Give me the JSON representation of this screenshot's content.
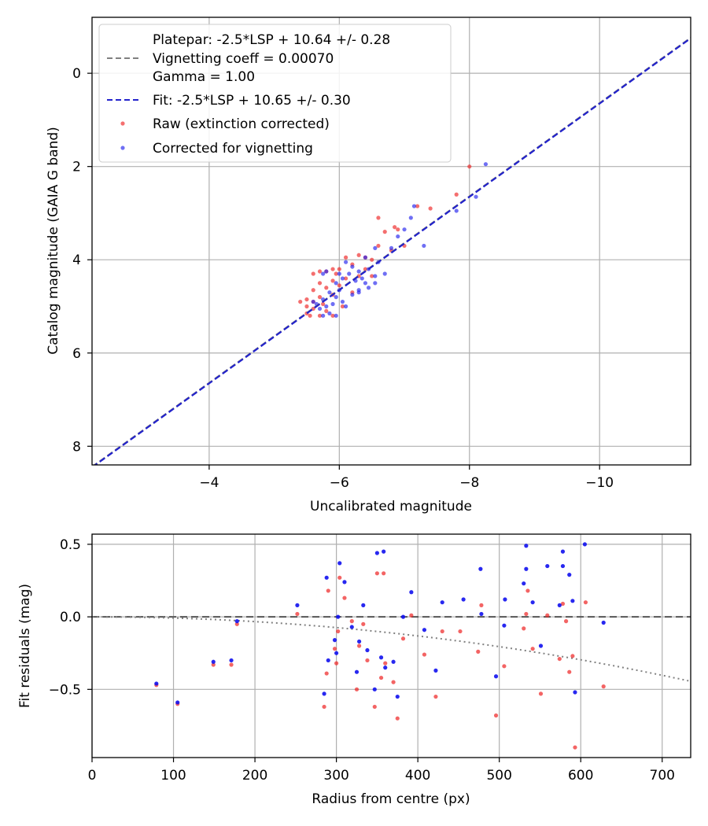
{
  "chart_data": [
    {
      "type": "scatter",
      "xlabel": "Uncalibrated magnitude",
      "ylabel": "Catalog magnitude (GAIA G band)",
      "xlim": [
        -2.2,
        -11.4
      ],
      "ylim": [
        8.4,
        -1.2
      ],
      "xticks": [
        -4,
        -6,
        -8,
        -10
      ],
      "xtick_labels": [
        "−4",
        "−6",
        "−8",
        "−10"
      ],
      "yticks": [
        0,
        2,
        4,
        6,
        8
      ],
      "ytick_labels": [
        "0",
        "2",
        "4",
        "6",
        "8"
      ],
      "grid": true,
      "legend_position": "top-left",
      "legend": [
        {
          "label": "Platepar: -2.5*LSP + 10.64 +/- 0.28",
          "style": "none"
        },
        {
          "label": "Vignetting coeff = 0.00070",
          "style": "gray-dashed"
        },
        {
          "label": "Gamma = 1.00",
          "style": "none"
        },
        {
          "label": "Fit: -2.5*LSP + 10.65 +/- 0.30",
          "style": "blue-dashed"
        },
        {
          "label": "Raw (extinction corrected)",
          "style": "red-dot"
        },
        {
          "label": "Corrected for vignetting",
          "style": "blue-dot"
        }
      ],
      "lines": [
        {
          "name": "Platepar",
          "slope": 1.0,
          "intercept": 10.64,
          "color": "#808080"
        },
        {
          "name": "Fit",
          "slope": 1.0,
          "intercept": 10.65,
          "color": "#2222cc"
        }
      ],
      "series": [
        {
          "name": "Raw (extinction corrected)",
          "color": "#ee2222",
          "points": [
            [
              -8.0,
              2.0
            ],
            [
              -7.8,
              2.6
            ],
            [
              -7.4,
              2.9
            ],
            [
              -7.2,
              2.85
            ],
            [
              -6.85,
              3.3
            ],
            [
              -6.9,
              3.35
            ],
            [
              -6.6,
              3.1
            ],
            [
              -6.7,
              3.4
            ],
            [
              -7.0,
              3.7
            ],
            [
              -6.8,
              3.8
            ],
            [
              -6.6,
              3.7
            ],
            [
              -6.4,
              3.95
            ],
            [
              -6.5,
              4.0
            ],
            [
              -6.3,
              3.9
            ],
            [
              -6.1,
              3.95
            ],
            [
              -6.2,
              4.1
            ],
            [
              -6.4,
              4.2
            ],
            [
              -6.0,
              4.2
            ],
            [
              -5.9,
              4.2
            ],
            [
              -5.8,
              4.25
            ],
            [
              -5.7,
              4.25
            ],
            [
              -5.6,
              4.3
            ],
            [
              -5.95,
              4.3
            ],
            [
              -6.3,
              4.35
            ],
            [
              -6.5,
              4.35
            ],
            [
              -6.1,
              4.4
            ],
            [
              -5.9,
              4.45
            ],
            [
              -5.7,
              4.5
            ],
            [
              -6.0,
              4.55
            ],
            [
              -5.8,
              4.6
            ],
            [
              -5.6,
              4.65
            ],
            [
              -6.2,
              4.7
            ],
            [
              -5.9,
              4.75
            ],
            [
              -5.7,
              4.8
            ],
            [
              -5.5,
              4.85
            ],
            [
              -5.6,
              4.9
            ],
            [
              -5.4,
              4.9
            ],
            [
              -5.75,
              4.95
            ],
            [
              -5.5,
              5.0
            ],
            [
              -5.6,
              5.05
            ],
            [
              -5.8,
              5.1
            ],
            [
              -5.5,
              5.15
            ],
            [
              -5.7,
              5.2
            ],
            [
              -5.9,
              5.2
            ],
            [
              -6.05,
              5.0
            ],
            [
              -5.55,
              5.2
            ]
          ]
        },
        {
          "name": "Corrected for vignetting",
          "color": "#2222ee",
          "points": [
            [
              -8.25,
              1.95
            ],
            [
              -8.1,
              2.65
            ],
            [
              -7.8,
              2.95
            ],
            [
              -7.15,
              2.85
            ],
            [
              -7.1,
              3.1
            ],
            [
              -7.0,
              3.35
            ],
            [
              -6.9,
              3.5
            ],
            [
              -7.3,
              3.7
            ],
            [
              -6.8,
              3.75
            ],
            [
              -6.55,
              3.75
            ],
            [
              -6.4,
              3.95
            ],
            [
              -6.6,
              4.05
            ],
            [
              -6.1,
              4.05
            ],
            [
              -6.2,
              4.15
            ],
            [
              -6.45,
              4.2
            ],
            [
              -6.3,
              4.25
            ],
            [
              -6.0,
              4.3
            ],
            [
              -5.8,
              4.25
            ],
            [
              -5.75,
              4.3
            ],
            [
              -6.15,
              4.3
            ],
            [
              -6.7,
              4.3
            ],
            [
              -6.55,
              4.35
            ],
            [
              -6.35,
              4.4
            ],
            [
              -6.05,
              4.4
            ],
            [
              -6.25,
              4.45
            ],
            [
              -5.95,
              4.5
            ],
            [
              -6.4,
              4.5
            ],
            [
              -6.45,
              4.6
            ],
            [
              -6.3,
              4.65
            ],
            [
              -6.0,
              4.65
            ],
            [
              -5.85,
              4.7
            ],
            [
              -6.2,
              4.75
            ],
            [
              -5.95,
              4.8
            ],
            [
              -5.75,
              4.85
            ],
            [
              -6.05,
              4.9
            ],
            [
              -5.65,
              4.95
            ],
            [
              -5.9,
              4.95
            ],
            [
              -6.1,
              5.0
            ],
            [
              -5.8,
              5.0
            ],
            [
              -5.7,
              5.05
            ],
            [
              -5.85,
              5.15
            ],
            [
              -5.95,
              5.2
            ],
            [
              -5.75,
              5.2
            ],
            [
              -6.3,
              4.7
            ],
            [
              -6.55,
              4.5
            ],
            [
              -5.6,
              4.9
            ]
          ]
        }
      ]
    },
    {
      "type": "scatter",
      "xlabel": "Radius from centre (px)",
      "ylabel": "Fit residuals (mag)",
      "xlim": [
        0,
        735
      ],
      "ylim": [
        -0.97,
        0.57
      ],
      "xticks": [
        0,
        100,
        200,
        300,
        400,
        500,
        600,
        700
      ],
      "xtick_labels": [
        "0",
        "100",
        "200",
        "300",
        "400",
        "500",
        "600",
        "700"
      ],
      "yticks": [
        0.5,
        0.0,
        -0.5
      ],
      "ytick_labels": [
        "0.5",
        "0.0",
        "−0.5"
      ],
      "grid": true,
      "lines": [
        {
          "name": "zero",
          "y": 0.0,
          "color": "#555555",
          "style": "dashed"
        },
        {
          "name": "vignetting",
          "curve_coeff": 0.0007,
          "color": "#808080",
          "style": "dotted"
        }
      ],
      "series": [
        {
          "name": "Raw",
          "color": "#ee2222",
          "points": [
            [
              79,
              -0.47
            ],
            [
              105,
              -0.6
            ],
            [
              149,
              -0.33
            ],
            [
              171,
              -0.33
            ],
            [
              178,
              -0.05
            ],
            [
              252,
              0.02
            ],
            [
              285,
              -0.62
            ],
            [
              288,
              -0.39
            ],
            [
              290,
              0.18
            ],
            [
              298,
              -0.22
            ],
            [
              300,
              -0.32
            ],
            [
              302,
              -0.1
            ],
            [
              304,
              0.27
            ],
            [
              310,
              0.13
            ],
            [
              319,
              -0.03
            ],
            [
              325,
              -0.5
            ],
            [
              328,
              -0.2
            ],
            [
              333,
              -0.05
            ],
            [
              338,
              -0.3
            ],
            [
              347,
              -0.62
            ],
            [
              350,
              0.3
            ],
            [
              355,
              -0.42
            ],
            [
              358,
              0.3
            ],
            [
              360,
              -0.32
            ],
            [
              370,
              -0.45
            ],
            [
              375,
              -0.7
            ],
            [
              382,
              -0.15
            ],
            [
              392,
              0.01
            ],
            [
              408,
              -0.26
            ],
            [
              422,
              -0.55
            ],
            [
              430,
              -0.1
            ],
            [
              452,
              -0.1
            ],
            [
              474,
              -0.24
            ],
            [
              478,
              0.08
            ],
            [
              496,
              -0.68
            ],
            [
              506,
              -0.34
            ],
            [
              530,
              -0.08
            ],
            [
              535,
              0.18
            ],
            [
              533,
              0.02
            ],
            [
              541,
              -0.22
            ],
            [
              551,
              -0.53
            ],
            [
              559,
              0.01
            ],
            [
              574,
              -0.29
            ],
            [
              578,
              0.09
            ],
            [
              582,
              -0.03
            ],
            [
              586,
              -0.38
            ],
            [
              590,
              -0.27
            ],
            [
              593,
              -0.9
            ],
            [
              606,
              0.1
            ],
            [
              628,
              -0.48
            ]
          ]
        },
        {
          "name": "Corrected",
          "color": "#1111ee",
          "points": [
            [
              79,
              -0.46
            ],
            [
              105,
              -0.59
            ],
            [
              149,
              -0.31
            ],
            [
              171,
              -0.3
            ],
            [
              178,
              -0.03
            ],
            [
              252,
              0.08
            ],
            [
              285,
              -0.53
            ],
            [
              288,
              0.27
            ],
            [
              290,
              -0.3
            ],
            [
              298,
              -0.16
            ],
            [
              300,
              -0.25
            ],
            [
              302,
              0.0
            ],
            [
              304,
              0.37
            ],
            [
              310,
              0.24
            ],
            [
              319,
              -0.07
            ],
            [
              325,
              -0.38
            ],
            [
              328,
              -0.17
            ],
            [
              333,
              0.08
            ],
            [
              338,
              -0.23
            ],
            [
              347,
              -0.5
            ],
            [
              350,
              0.44
            ],
            [
              355,
              -0.28
            ],
            [
              358,
              0.45
            ],
            [
              360,
              -0.35
            ],
            [
              370,
              -0.31
            ],
            [
              375,
              -0.55
            ],
            [
              382,
              0.0
            ],
            [
              392,
              0.17
            ],
            [
              408,
              -0.09
            ],
            [
              422,
              -0.37
            ],
            [
              430,
              0.1
            ],
            [
              456,
              0.12
            ],
            [
              477,
              0.33
            ],
            [
              478,
              0.02
            ],
            [
              496,
              -0.41
            ],
            [
              506,
              -0.06
            ],
            [
              507,
              0.12
            ],
            [
              530,
              0.23
            ],
            [
              533,
              0.49
            ],
            [
              533,
              0.33
            ],
            [
              541,
              0.1
            ],
            [
              551,
              -0.2
            ],
            [
              559,
              0.35
            ],
            [
              574,
              0.08
            ],
            [
              578,
              0.45
            ],
            [
              578,
              0.35
            ],
            [
              586,
              0.29
            ],
            [
              590,
              0.11
            ],
            [
              593,
              -0.52
            ],
            [
              605,
              0.5
            ],
            [
              628,
              -0.04
            ]
          ]
        }
      ]
    }
  ]
}
